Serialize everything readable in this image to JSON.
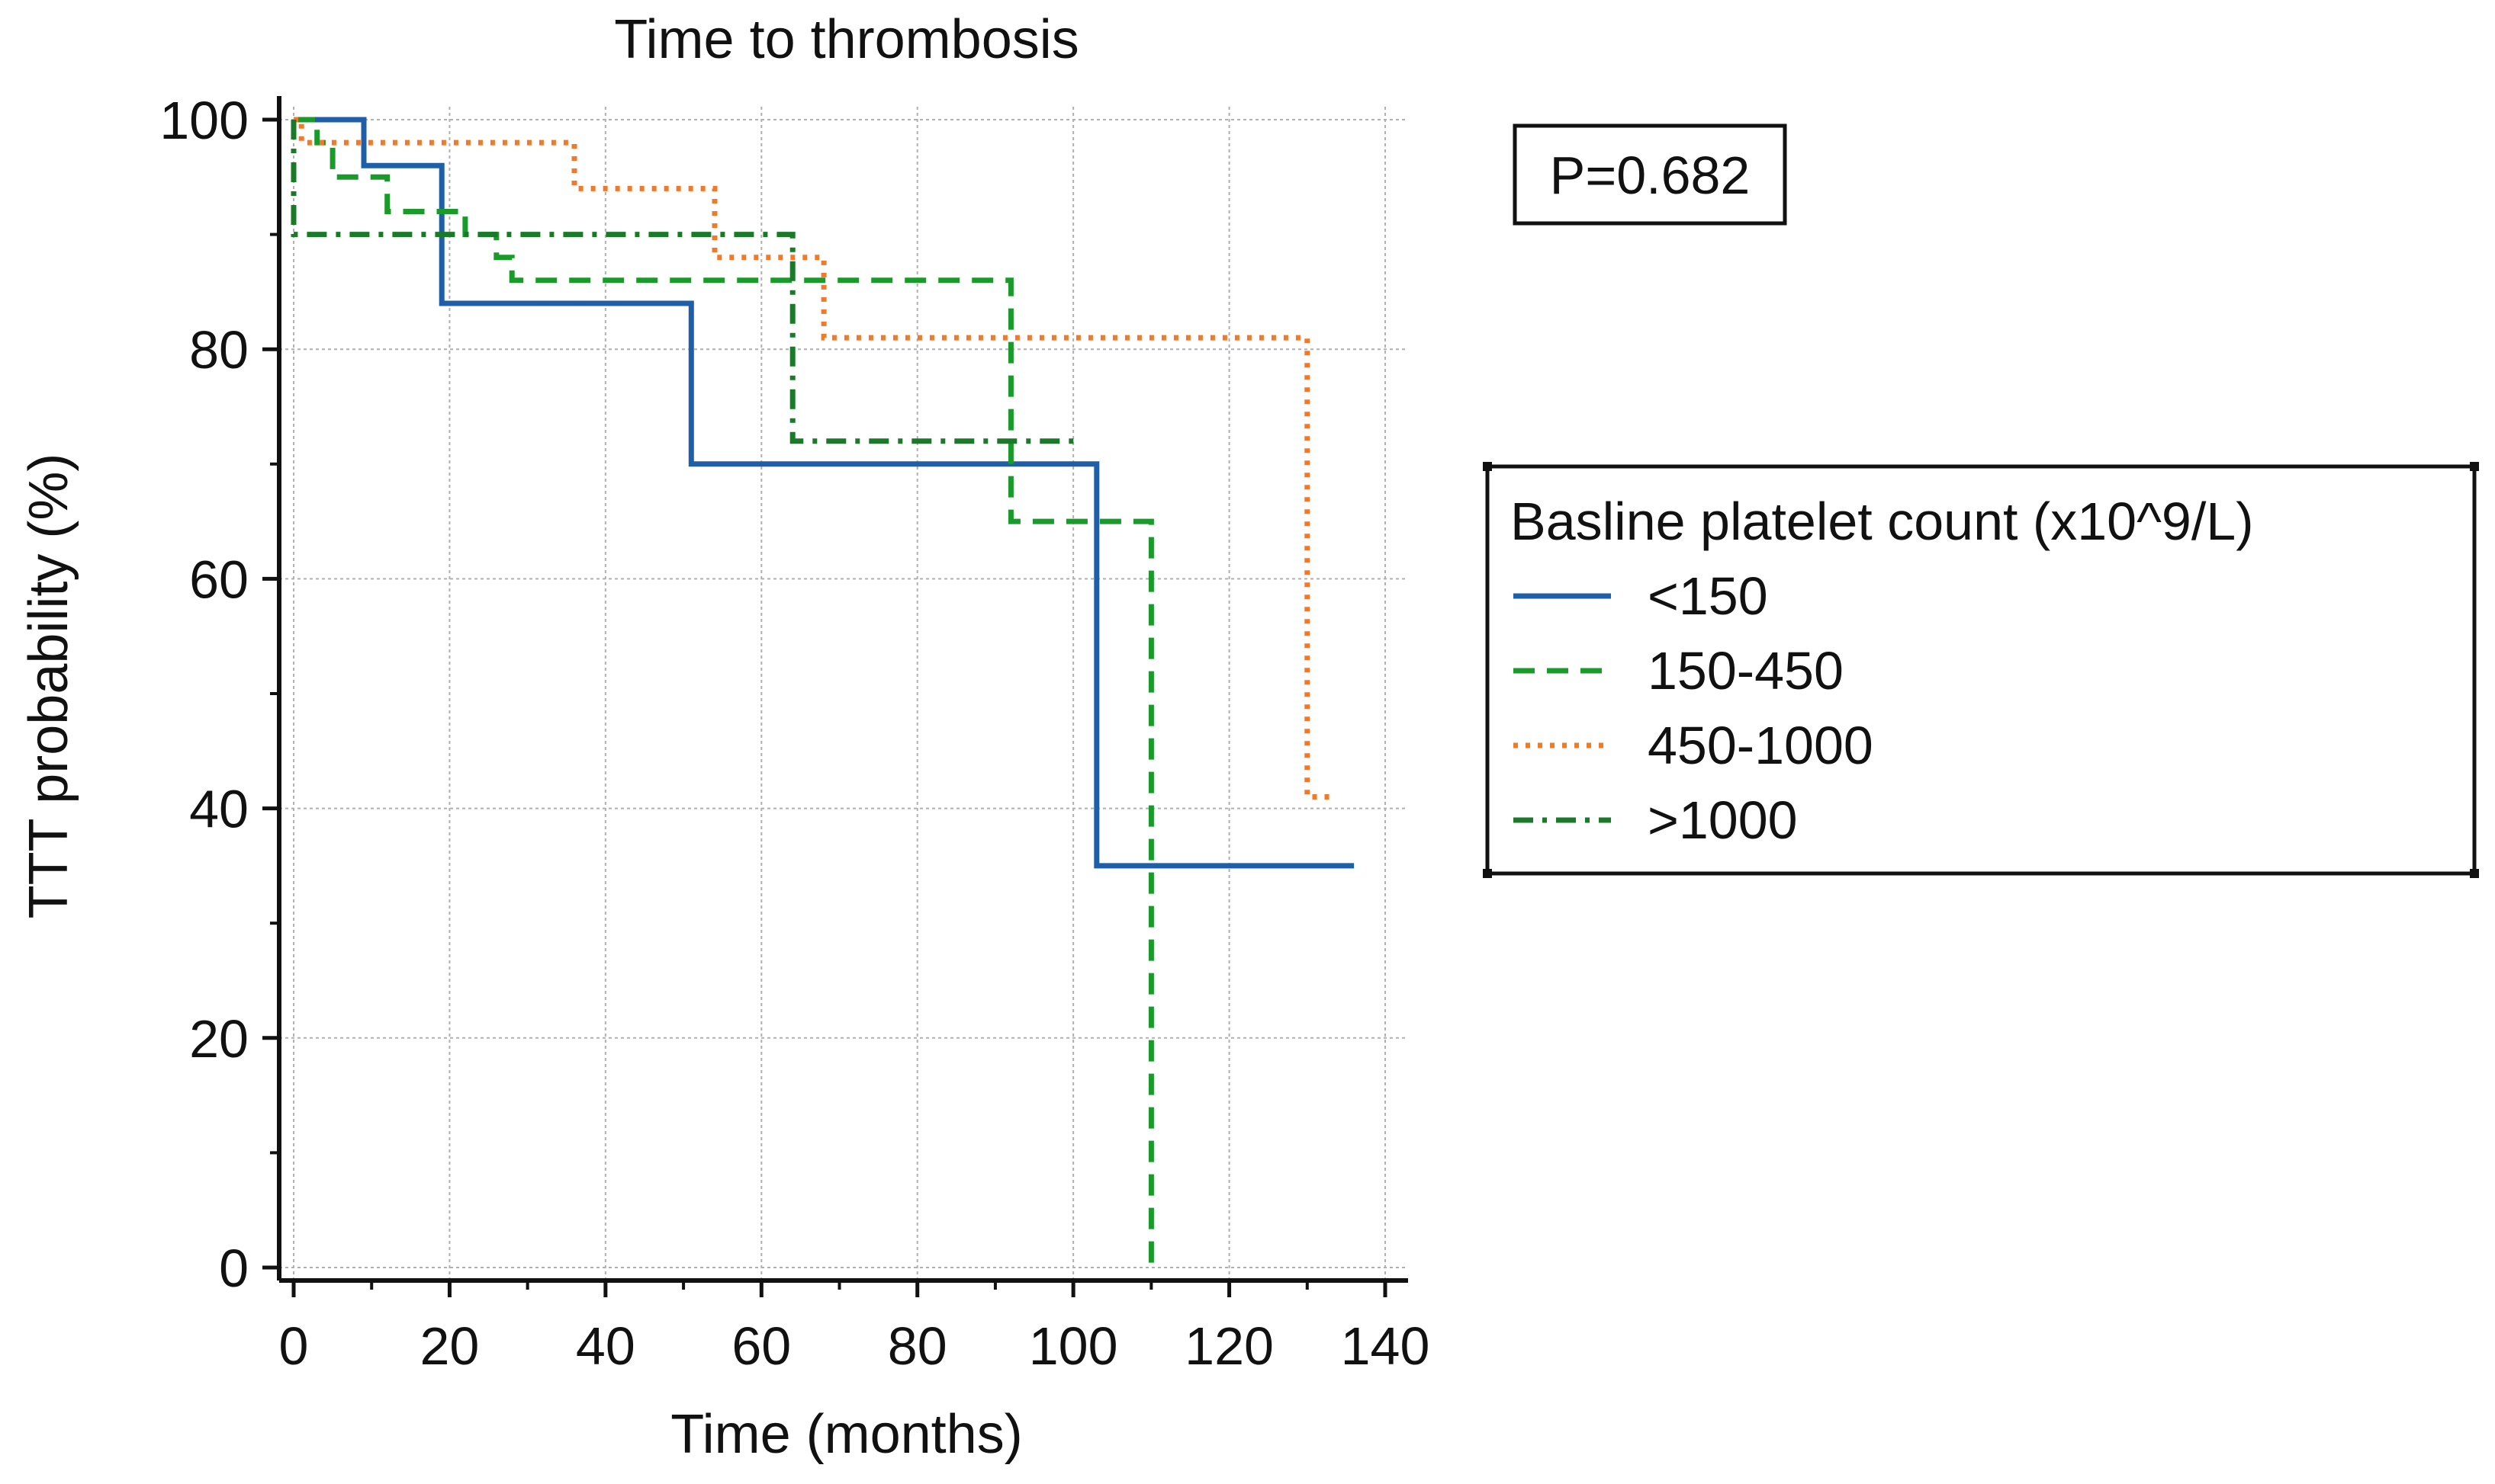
{
  "chart_data": {
    "type": "line",
    "subtype": "kaplan-meier step",
    "title": "Time to thrombosis",
    "xlabel": "Time (months)",
    "ylabel": "TTT probability (%)",
    "xlim": [
      0,
      140
    ],
    "ylim": [
      0,
      100
    ],
    "xticks": [
      0,
      20,
      40,
      60,
      80,
      100,
      120,
      140
    ],
    "yticks": [
      0,
      20,
      40,
      60,
      80,
      100
    ],
    "grid": true,
    "annotation": "P=0.682",
    "legend": {
      "title": "Basline platelet count (x10^9/L)",
      "placement": "right"
    },
    "series": [
      {
        "name": "<150",
        "color": "#1f5fa8",
        "dash": "solid",
        "points": [
          [
            0,
            100
          ],
          [
            9,
            100
          ],
          [
            9,
            96
          ],
          [
            19,
            96
          ],
          [
            19,
            84
          ],
          [
            51,
            84
          ],
          [
            51,
            70
          ],
          [
            103,
            70
          ],
          [
            103,
            35
          ],
          [
            136,
            35
          ]
        ]
      },
      {
        "name": "150-450",
        "color": "#1a9a2a",
        "dash": "dashed",
        "points": [
          [
            0,
            100
          ],
          [
            3,
            100
          ],
          [
            3,
            98
          ],
          [
            5,
            98
          ],
          [
            5,
            95
          ],
          [
            12,
            95
          ],
          [
            12,
            92
          ],
          [
            22,
            92
          ],
          [
            22,
            90
          ],
          [
            26,
            90
          ],
          [
            26,
            88
          ],
          [
            28,
            88
          ],
          [
            28,
            86
          ],
          [
            92,
            86
          ],
          [
            92,
            65
          ],
          [
            110,
            65
          ],
          [
            110,
            0
          ]
        ]
      },
      {
        "name": "450-1000",
        "color": "#f07a2a",
        "dash": "dotted",
        "points": [
          [
            0,
            100
          ],
          [
            1,
            100
          ],
          [
            1,
            98
          ],
          [
            36,
            98
          ],
          [
            36,
            94
          ],
          [
            54,
            94
          ],
          [
            54,
            88
          ],
          [
            68,
            88
          ],
          [
            68,
            81
          ],
          [
            130,
            81
          ],
          [
            130,
            41
          ],
          [
            133,
            41
          ]
        ]
      },
      {
        "name": ">1000",
        "color": "#1a7a2a",
        "dash": "dashdot",
        "points": [
          [
            0,
            100
          ],
          [
            0,
            90
          ],
          [
            64,
            90
          ],
          [
            64,
            72
          ],
          [
            101,
            72
          ]
        ]
      }
    ]
  }
}
